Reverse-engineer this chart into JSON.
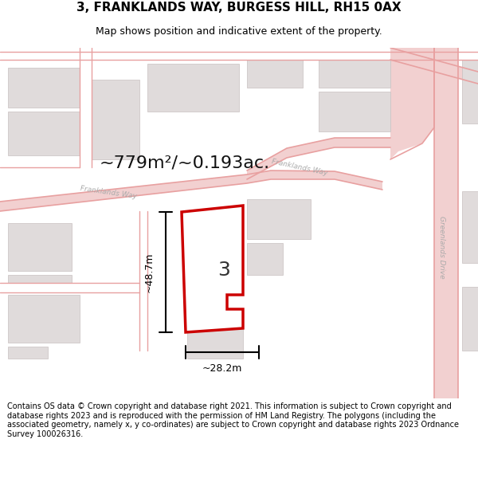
{
  "title": "3, FRANKLANDS WAY, BURGESS HILL, RH15 0AX",
  "subtitle": "Map shows position and indicative extent of the property.",
  "footnote": "Contains OS data © Crown copyright and database right 2021. This information is subject to Crown copyright and database rights 2023 and is reproduced with the permission of HM Land Registry. The polygons (including the associated geometry, namely x, y co-ordinates) are subject to Crown copyright and database rights 2023 Ordnance Survey 100026316.",
  "area_label": "~779m²/~0.193ac.",
  "width_label": "~28.2m",
  "height_label": "~48.7m",
  "plot_number": "3",
  "map_bg": "#f7f4f4",
  "road_fill": "#f2d0d0",
  "road_line": "#e8a0a0",
  "building_fill": "#e0dbdb",
  "building_edge": "#c8c0c0",
  "plot_fill": "#ffffff",
  "plot_edge": "#cc0000",
  "dim_color": "#000000",
  "text_color": "#111111",
  "road_label_color": "#aaaaaa",
  "title_fontsize": 11,
  "subtitle_fontsize": 9,
  "footnote_fontsize": 7
}
